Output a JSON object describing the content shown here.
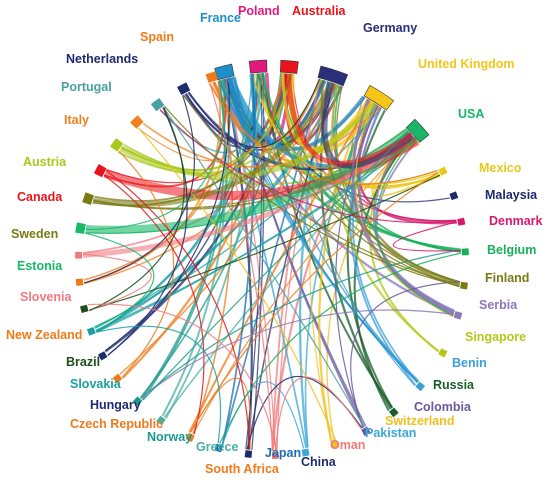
{
  "nodes": [
    {
      "name": "France",
      "color": "#1a8fc9"
    },
    {
      "name": "Poland",
      "color": "#e0197d"
    },
    {
      "name": "Australia",
      "color": "#e8141b"
    },
    {
      "name": "Germany",
      "color": "#2a2f7a"
    },
    {
      "name": "United Kingdom",
      "color": "#f5c518"
    },
    {
      "name": "USA",
      "color": "#1bb56a"
    },
    {
      "name": "Mexico",
      "color": "#e8c81a"
    },
    {
      "name": "Malaysia",
      "color": "#1e2a6e"
    },
    {
      "name": "Denmark",
      "color": "#d6196f"
    },
    {
      "name": "Belgium",
      "color": "#18b058"
    },
    {
      "name": "Finland",
      "color": "#7a7a14"
    },
    {
      "name": "Serbia",
      "color": "#8b76b8"
    },
    {
      "name": "Singapore",
      "color": "#b5c81a"
    },
    {
      "name": "Benin",
      "color": "#3a9fd8"
    },
    {
      "name": "Russia",
      "color": "#1a5e2a"
    },
    {
      "name": "Colombia",
      "color": "#6a5aa0"
    },
    {
      "name": "Switzerland",
      "color": "#f0c020"
    },
    {
      "name": "Pakistan",
      "color": "#3aa8d8"
    },
    {
      "name": "Oman",
      "color": "#f07a7a"
    },
    {
      "name": "China",
      "color": "#1e2a6e"
    },
    {
      "name": "Japan",
      "color": "#1a6fb0"
    },
    {
      "name": "South Africa",
      "color": "#f07a1a"
    },
    {
      "name": "Greece",
      "color": "#4ab0a0"
    },
    {
      "name": "Norway",
      "color": "#1a9a8a"
    },
    {
      "name": "Czech Republic",
      "color": "#f07a1a"
    },
    {
      "name": "Hungary",
      "color": "#1e2a6e"
    },
    {
      "name": "Slovakia",
      "color": "#1aa0a0"
    },
    {
      "name": "Brazil",
      "color": "#1a4e1a"
    },
    {
      "name": "New Zealand",
      "color": "#f07a1a"
    },
    {
      "name": "Slovenia",
      "color": "#f07a80"
    },
    {
      "name": "Estonia",
      "color": "#18b868"
    },
    {
      "name": "Sweden",
      "color": "#7a7a14"
    },
    {
      "name": "Canada",
      "color": "#e8141b"
    },
    {
      "name": "Austria",
      "color": "#a8c81a"
    },
    {
      "name": "Italy",
      "color": "#f08020"
    },
    {
      "name": "Portugal",
      "color": "#4aa0a0"
    },
    {
      "name": "Netherlands",
      "color": "#1e2a6e"
    },
    {
      "name": "Spain",
      "color": "#f07a1a"
    }
  ]
}
